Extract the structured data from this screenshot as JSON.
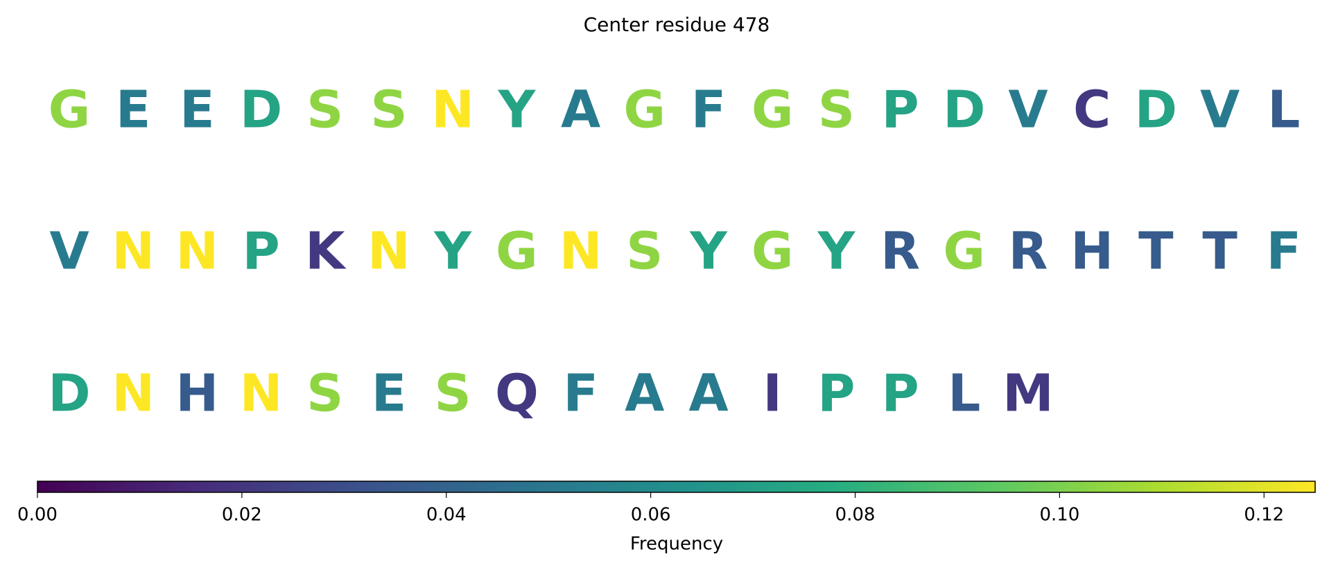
{
  "chart_data": {
    "type": "sequence",
    "title": "Center residue 478",
    "categories": [
      "G",
      "E",
      "E",
      "D",
      "S",
      "S",
      "N",
      "Y",
      "A",
      "G",
      "F",
      "G",
      "S",
      "P",
      "D",
      "V",
      "C",
      "D",
      "V",
      "L",
      "V",
      "N",
      "N",
      "P",
      "K",
      "N",
      "Y",
      "G",
      "N",
      "S",
      "Y",
      "G",
      "Y",
      "R",
      "G",
      "R",
      "H",
      "T",
      "T",
      "F",
      "D",
      "N",
      "H",
      "N",
      "S",
      "E",
      "S",
      "Q",
      "F",
      "A",
      "A",
      "I",
      "P",
      "P",
      "L",
      "M"
    ],
    "values": [
      0.104,
      0.052,
      0.052,
      0.073,
      0.104,
      0.104,
      0.125,
      0.073,
      0.052,
      0.104,
      0.052,
      0.104,
      0.104,
      0.073,
      0.073,
      0.052,
      0.021,
      0.073,
      0.052,
      0.036,
      0.052,
      0.125,
      0.125,
      0.073,
      0.021,
      0.125,
      0.073,
      0.104,
      0.125,
      0.104,
      0.073,
      0.104,
      0.073,
      0.036,
      0.104,
      0.036,
      0.036,
      0.036,
      0.036,
      0.052,
      0.073,
      0.125,
      0.036,
      0.125,
      0.104,
      0.052,
      0.104,
      0.021,
      0.052,
      0.052,
      0.052,
      0.021,
      0.073,
      0.073,
      0.036,
      0.021
    ],
    "colormap": "viridis",
    "colorbar_label": "Frequency",
    "clim": [
      0,
      0.125
    ],
    "cticks": [
      {
        "value": 0,
        "label": "0.00"
      },
      {
        "value": 0.02,
        "label": "0.02"
      },
      {
        "value": 0.04,
        "label": "0.04"
      },
      {
        "value": 0.06,
        "label": "0.06"
      },
      {
        "value": 0.08,
        "label": "0.08"
      },
      {
        "value": 0.1,
        "label": "0.10"
      },
      {
        "value": 0.12,
        "label": "0.12"
      }
    ]
  }
}
